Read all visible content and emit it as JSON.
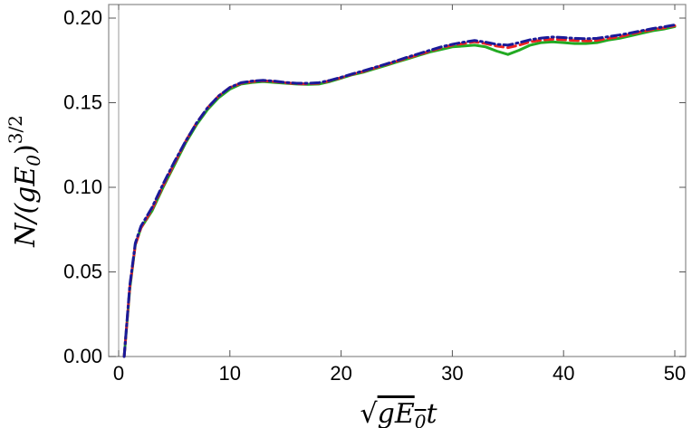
{
  "chart_data": {
    "type": "line",
    "title": "",
    "xlabel": "√(gE₀) t",
    "ylabel": "N/(gE₀)^{3/2}",
    "xlim": [
      0,
      50
    ],
    "ylim": [
      0,
      0.2
    ],
    "grid": false,
    "xticks": [
      "0",
      "10",
      "20",
      "30",
      "40",
      "50"
    ],
    "yticks": [
      "0.00",
      "0.05",
      "0.10",
      "0.15",
      "0.20"
    ],
    "x": [
      0.5,
      1.0,
      1.5,
      2.0,
      3.0,
      4.0,
      5.0,
      6.0,
      7.0,
      8.0,
      9.0,
      10.0,
      11.0,
      12.0,
      13.0,
      14.0,
      15.0,
      16.0,
      17.0,
      18.0,
      19.0,
      20.0,
      21.0,
      22.0,
      23.0,
      24.0,
      25.0,
      26.0,
      27.0,
      28.0,
      29.0,
      30.0,
      31.0,
      32.0,
      33.0,
      34.0,
      35.0,
      36.0,
      37.0,
      38.0,
      39.0,
      40.0,
      41.0,
      42.0,
      43.0,
      44.0,
      45.0,
      46.0,
      47.0,
      48.0,
      49.0,
      50.0
    ],
    "series": [
      {
        "color": "#22aa22",
        "dash": "solid",
        "values": [
          0.0,
          0.04,
          0.066,
          0.076,
          0.086,
          0.1,
          0.113,
          0.126,
          0.137,
          0.146,
          0.153,
          0.158,
          0.161,
          0.162,
          0.1625,
          0.162,
          0.1615,
          0.161,
          0.1608,
          0.161,
          0.1625,
          0.1645,
          0.1665,
          0.168,
          0.17,
          0.172,
          0.174,
          0.176,
          0.178,
          0.18,
          0.1815,
          0.183,
          0.1835,
          0.184,
          0.183,
          0.1805,
          0.1785,
          0.181,
          0.184,
          0.1855,
          0.186,
          0.1855,
          0.185,
          0.185,
          0.1855,
          0.187,
          0.188,
          0.1895,
          0.191,
          0.1925,
          0.1935,
          0.195
        ]
      },
      {
        "color": "#ee2222",
        "dash": "dashed",
        "values": [
          0.0,
          0.041,
          0.066,
          0.076,
          0.087,
          0.101,
          0.114,
          0.127,
          0.138,
          0.147,
          0.154,
          0.159,
          0.1615,
          0.1625,
          0.163,
          0.1625,
          0.1618,
          0.1612,
          0.1612,
          0.1615,
          0.163,
          0.1648,
          0.1668,
          0.1685,
          0.1705,
          0.1725,
          0.1745,
          0.1765,
          0.1785,
          0.1805,
          0.1825,
          0.184,
          0.185,
          0.186,
          0.185,
          0.1835,
          0.1825,
          0.184,
          0.186,
          0.187,
          0.1875,
          0.1872,
          0.1868,
          0.1865,
          0.1868,
          0.188,
          0.189,
          0.1905,
          0.192,
          0.1932,
          0.1942,
          0.1955
        ]
      },
      {
        "color": "#1a1a99",
        "dash": "dashdot",
        "values": [
          0.0,
          0.042,
          0.067,
          0.077,
          0.088,
          0.102,
          0.115,
          0.127,
          0.138,
          0.147,
          0.154,
          0.159,
          0.1618,
          0.1628,
          0.1632,
          0.1628,
          0.162,
          0.1615,
          0.1615,
          0.1618,
          0.1632,
          0.165,
          0.167,
          0.1688,
          0.1708,
          0.1728,
          0.1748,
          0.177,
          0.179,
          0.181,
          0.183,
          0.1845,
          0.1858,
          0.1868,
          0.1858,
          0.1845,
          0.184,
          0.1855,
          0.1872,
          0.1882,
          0.1888,
          0.1885,
          0.188,
          0.1878,
          0.188,
          0.189,
          0.19,
          0.1912,
          0.1925,
          0.1938,
          0.1948,
          0.196
        ]
      }
    ]
  }
}
